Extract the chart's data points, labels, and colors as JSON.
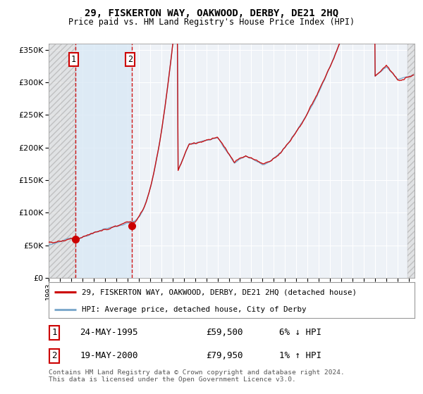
{
  "title": "29, FISKERTON WAY, OAKWOOD, DERBY, DE21 2HQ",
  "subtitle": "Price paid vs. HM Land Registry's House Price Index (HPI)",
  "legend_line1": "29, FISKERTON WAY, OAKWOOD, DERBY, DE21 2HQ (detached house)",
  "legend_line2": "HPI: Average price, detached house, City of Derby",
  "transaction1_date": "24-MAY-1995",
  "transaction1_price": 59500,
  "transaction1_note": "6% ↓ HPI",
  "transaction2_date": "19-MAY-2000",
  "transaction2_price": 79950,
  "transaction2_note": "1% ↑ HPI",
  "footnote": "Contains HM Land Registry data © Crown copyright and database right 2024.\nThis data is licensed under the Open Government Licence v3.0.",
  "ylim": [
    0,
    360000
  ],
  "yticks": [
    0,
    50000,
    100000,
    150000,
    200000,
    250000,
    300000,
    350000
  ],
  "xlim_start": 1993,
  "xlim_end": 2025.5,
  "background_color": "#ffffff",
  "plot_bg_color": "#eef2f7",
  "grid_color": "#ffffff",
  "hpi_color": "#7eaacc",
  "price_color": "#cc0000",
  "hatch_end": 1995.37,
  "shade_start": 1995.37,
  "shade_end": 2000.37,
  "tx1_x": 1995.37,
  "tx2_x": 2000.37
}
